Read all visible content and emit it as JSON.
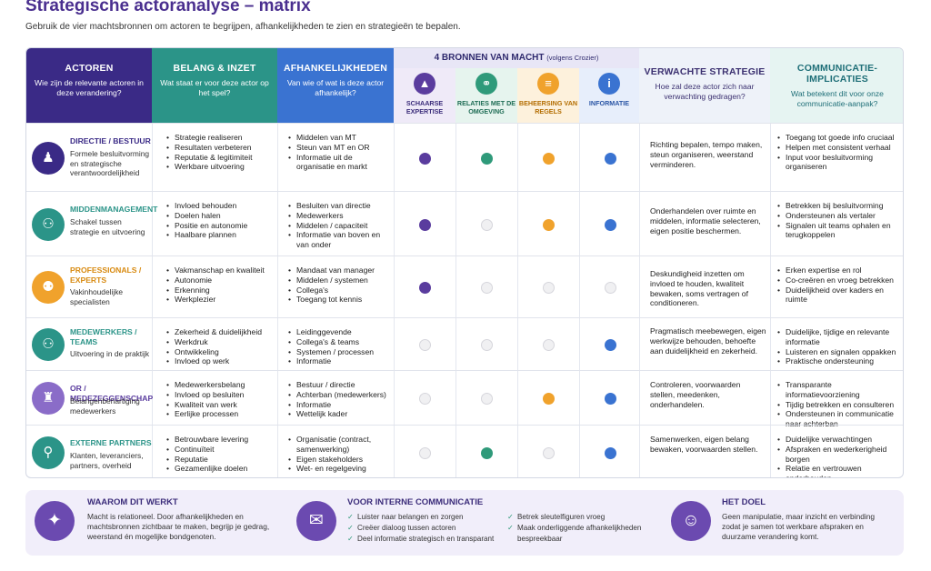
{
  "title": "Strategische actoranalyse – matrix",
  "subtitle": "Gebruik de vier machtsbronnen om actoren te begrijpen, afhankelijkheden te zien en strategieën te bepalen.",
  "headers": {
    "actoren": {
      "title": "ACTOREN",
      "sub": "Wie zijn de relevante actoren in deze verandering?"
    },
    "belang": {
      "title": "BELANG & INZET",
      "sub": "Wat staat er voor deze actor op het spel?"
    },
    "afhankelijkheden": {
      "title": "AFHANKELIJKHEDEN",
      "sub": "Van wie of wat is deze actor afhankelijk?"
    },
    "bronnen": {
      "title": "4 BRONNEN VAN MACHT",
      "note": "(volgens Crozier)"
    },
    "bron_labels": [
      "SCHAARSE EXPERTISE",
      "RELATIES MET DE OMGEVING",
      "BEHEERSING VAN REGELS",
      "INFORMATIE"
    ],
    "strategie": {
      "title": "VERWACHTE STRATEGIE",
      "sub": "Hoe zal deze actor zich naar verwachting gedragen?"
    },
    "communicatie": {
      "title": "COMMUNICATIE-IMPLICATIES",
      "sub": "Wat betekent dit voor onze communicatie-aanpak?"
    }
  },
  "colors": {
    "expertise": "#5a3c9e",
    "relaties": "#2f9a7a",
    "regels": "#f0a22c",
    "informatie": "#3a73d1"
  },
  "rows": [
    {
      "name": "DIRECTIE / BESTUUR",
      "desc": "Formele besluitvorming en strategische verantwoordelijkheid",
      "icon": "person-icon",
      "belang": [
        "Strategie realiseren",
        "Resultaten verbeteren",
        "Reputatie & legitimiteit",
        "Werkbare uitvoering"
      ],
      "afhankelijk": [
        "Middelen van MT",
        "Steun van MT en OR",
        "Informatie uit de organisatie en markt"
      ],
      "bronnen": [
        true,
        true,
        true,
        true
      ],
      "strategie": "Richting bepalen, tempo maken, steun organiseren, weerstand verminderen.",
      "communicatie": [
        "Toegang tot goede info cruciaal",
        "Helpen met consistent verhaal",
        "Input voor besluitvorming organiseren"
      ]
    },
    {
      "name": "MIDDENMANAGEMENT",
      "desc": "Schakel tussen strategie en uitvoering",
      "icon": "group-icon",
      "belang": [
        "Invloed behouden",
        "Doelen halen",
        "Positie en autonomie",
        "Haalbare plannen"
      ],
      "afhankelijk": [
        "Besluiten van directie",
        "Medewerkers",
        "Middelen / capaciteit",
        "Informatie van boven en van onder"
      ],
      "bronnen": [
        true,
        false,
        true,
        true
      ],
      "strategie": "Onderhandelen over ruimte en middelen, informatie selecteren, eigen positie beschermen.",
      "communicatie": [
        "Betrekken bij besluitvorming",
        "Ondersteunen als vertaler",
        "Signalen uit teams ophalen en terugkoppelen"
      ]
    },
    {
      "name": "PROFESSIONALS / EXPERTS",
      "desc": "Vakinhoudelijke specialisten",
      "icon": "experts-icon",
      "belang": [
        "Vakmanschap en kwaliteit",
        "Autonomie",
        "Erkenning",
        "Werkplezier"
      ],
      "afhankelijk": [
        "Mandaat van manager",
        "Middelen / systemen",
        "Collega's",
        "Toegang tot kennis"
      ],
      "bronnen": [
        true,
        false,
        false,
        false
      ],
      "strategie": "Deskundigheid inzetten om invloed te houden, kwaliteit bewaken, soms vertragen of conditioneren.",
      "communicatie": [
        "Erken expertise en rol",
        "Co-creëren en vroeg betrekken",
        "Duidelijkheid over kaders en ruimte"
      ]
    },
    {
      "name": "MEDEWERKERS / TEAMS",
      "desc": "Uitvoering in de praktijk",
      "icon": "team-icon",
      "belang": [
        "Zekerheid & duidelijkheid",
        "Werkdruk",
        "Ontwikkeling",
        "Invloed op werk"
      ],
      "afhankelijk": [
        "Leidinggevende",
        "Collega's & teams",
        "Systemen / processen",
        "Informatie"
      ],
      "bronnen": [
        false,
        false,
        false,
        true
      ],
      "strategie": "Pragmatisch meebewegen, eigen werkwijze behouden, behoefte aan duidelijkheid en zekerheid.",
      "communicatie": [
        "Duidelijke, tijdige en relevante informatie",
        "Luisteren en signalen oppakken",
        "Praktische ondersteuning"
      ]
    },
    {
      "name": "OR / MEDEZEGGENSCHAP",
      "desc": "Belangenbehartiging medewerkers",
      "icon": "council-icon",
      "belang": [
        "Medewerkersbelang",
        "Invloed op besluiten",
        "Kwaliteit van werk",
        "Eerlijke processen"
      ],
      "afhankelijk": [
        "Bestuur / directie",
        "Achterban (medewerkers)",
        "Informatie",
        "Wettelijk kader"
      ],
      "bronnen": [
        false,
        false,
        true,
        true
      ],
      "strategie": "Controleren, voorwaarden stellen, meedenken, onderhandelen.",
      "communicatie": [
        "Transparante informatievoorziening",
        "Tijdig betrekken en consulteren",
        "Ondersteunen in communicatie naar achterban"
      ]
    },
    {
      "name": "EXTERNE PARTNERS",
      "desc": "Klanten, leveranciers, partners, overheid",
      "icon": "network-icon",
      "belang": [
        "Betrouwbare levering",
        "Continuïteit",
        "Reputatie",
        "Gezamenlijke doelen"
      ],
      "afhankelijk": [
        "Organisatie (contract, samenwerking)",
        "Eigen stakeholders",
        "Wet- en regelgeving"
      ],
      "bronnen": [
        false,
        true,
        false,
        true
      ],
      "strategie": "Samenwerken, eigen belang bewaken, voorwaarden stellen.",
      "communicatie": [
        "Duidelijke verwachtingen",
        "Afspraken en wederkerigheid borgen",
        "Relatie en vertrouwen onderhouden"
      ]
    }
  ],
  "footer": {
    "werkt": {
      "title": "WAAROM DIT WERKT",
      "text": "Macht is relationeel. Door afhankelijkheden en machtsbronnen zichtbaar te maken, begrijp je gedrag, weerstand én mogelijke bondgenoten."
    },
    "intern": {
      "title": "VOOR INTERNE COMMUNICATIE",
      "col1": [
        "Luister naar belangen en zorgen",
        "Creëer dialoog tussen actoren",
        "Deel informatie strategisch en transparant"
      ],
      "col2": [
        "Betrek sleutelfiguren vroeg",
        "Maak onderliggende afhankelijkheden bespreekbaar"
      ]
    },
    "doel": {
      "title": "HET DOEL",
      "text": "Geen manipulatie, maar inzicht en verbinding zodat je samen tot werkbare afspraken en duurzame verandering komt."
    }
  }
}
